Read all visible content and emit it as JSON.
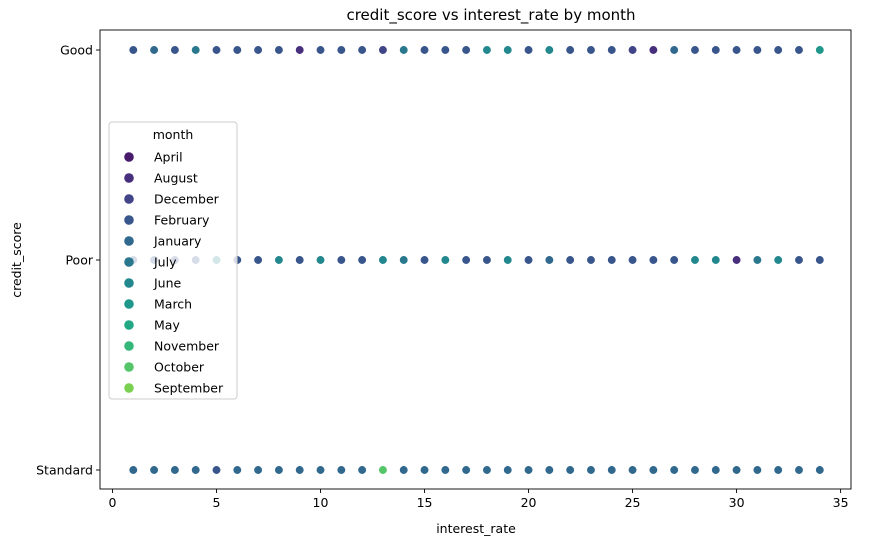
{
  "chart_data": {
    "type": "scatter",
    "title": "credit_score vs interest_rate by month",
    "xlabel": "interest_rate",
    "ylabel": "credit_score",
    "xlim": [
      -0.6,
      35.5
    ],
    "x_ticks": [
      0,
      5,
      10,
      15,
      20,
      25,
      30,
      35
    ],
    "categories_y": [
      "Good",
      "Poor",
      "Standard"
    ],
    "grid": false,
    "legend": {
      "title": "month",
      "placement": "center-left",
      "entries": [
        {
          "name": "April",
          "color": "#481a6c"
        },
        {
          "name": "August",
          "color": "#472f7d"
        },
        {
          "name": "December",
          "color": "#414487"
        },
        {
          "name": "February",
          "color": "#39568c"
        },
        {
          "name": "January",
          "color": "#31688e"
        },
        {
          "name": "July",
          "color": "#2a788e"
        },
        {
          "name": "June",
          "color": "#23888e"
        },
        {
          "name": "March",
          "color": "#1f988b"
        },
        {
          "name": "May",
          "color": "#22a884"
        },
        {
          "name": "November",
          "color": "#35b779"
        },
        {
          "name": "October",
          "color": "#54c568"
        },
        {
          "name": "September",
          "color": "#7ad151"
        }
      ]
    },
    "series": [
      {
        "y": "Good",
        "points": [
          {
            "x": 1,
            "month": "February"
          },
          {
            "x": 2,
            "month": "January"
          },
          {
            "x": 3,
            "month": "February"
          },
          {
            "x": 4,
            "month": "July"
          },
          {
            "x": 5,
            "month": "February"
          },
          {
            "x": 6,
            "month": "February"
          },
          {
            "x": 7,
            "month": "February"
          },
          {
            "x": 8,
            "month": "February"
          },
          {
            "x": 9,
            "month": "August"
          },
          {
            "x": 10,
            "month": "February"
          },
          {
            "x": 11,
            "month": "February"
          },
          {
            "x": 12,
            "month": "February"
          },
          {
            "x": 13,
            "month": "December"
          },
          {
            "x": 14,
            "month": "July"
          },
          {
            "x": 15,
            "month": "February"
          },
          {
            "x": 16,
            "month": "February"
          },
          {
            "x": 17,
            "month": "February"
          },
          {
            "x": 18,
            "month": "June"
          },
          {
            "x": 19,
            "month": "June"
          },
          {
            "x": 20,
            "month": "February"
          },
          {
            "x": 21,
            "month": "June"
          },
          {
            "x": 22,
            "month": "February"
          },
          {
            "x": 23,
            "month": "February"
          },
          {
            "x": 24,
            "month": "February"
          },
          {
            "x": 25,
            "month": "December"
          },
          {
            "x": 26,
            "month": "August"
          },
          {
            "x": 27,
            "month": "January"
          },
          {
            "x": 28,
            "month": "February"
          },
          {
            "x": 29,
            "month": "February"
          },
          {
            "x": 30,
            "month": "February"
          },
          {
            "x": 31,
            "month": "February"
          },
          {
            "x": 32,
            "month": "February"
          },
          {
            "x": 33,
            "month": "February"
          },
          {
            "x": 34,
            "month": "March"
          }
        ]
      },
      {
        "y": "Poor",
        "points": [
          {
            "x": 1,
            "month": "February"
          },
          {
            "x": 2,
            "month": "February"
          },
          {
            "x": 3,
            "month": "February"
          },
          {
            "x": 4,
            "month": "February"
          },
          {
            "x": 5,
            "month": "June"
          },
          {
            "x": 6,
            "month": "February"
          },
          {
            "x": 7,
            "month": "February"
          },
          {
            "x": 8,
            "month": "June"
          },
          {
            "x": 9,
            "month": "February"
          },
          {
            "x": 10,
            "month": "June"
          },
          {
            "x": 11,
            "month": "February"
          },
          {
            "x": 12,
            "month": "February"
          },
          {
            "x": 13,
            "month": "June"
          },
          {
            "x": 14,
            "month": "July"
          },
          {
            "x": 15,
            "month": "February"
          },
          {
            "x": 16,
            "month": "June"
          },
          {
            "x": 17,
            "month": "February"
          },
          {
            "x": 18,
            "month": "February"
          },
          {
            "x": 19,
            "month": "June"
          },
          {
            "x": 20,
            "month": "February"
          },
          {
            "x": 21,
            "month": "January"
          },
          {
            "x": 22,
            "month": "February"
          },
          {
            "x": 23,
            "month": "February"
          },
          {
            "x": 24,
            "month": "February"
          },
          {
            "x": 25,
            "month": "February"
          },
          {
            "x": 26,
            "month": "February"
          },
          {
            "x": 27,
            "month": "February"
          },
          {
            "x": 28,
            "month": "June"
          },
          {
            "x": 29,
            "month": "June"
          },
          {
            "x": 30,
            "month": "August"
          },
          {
            "x": 31,
            "month": "July"
          },
          {
            "x": 32,
            "month": "June"
          },
          {
            "x": 33,
            "month": "February"
          },
          {
            "x": 34,
            "month": "February"
          }
        ]
      },
      {
        "y": "Standard",
        "points": [
          {
            "x": 1,
            "month": "January"
          },
          {
            "x": 2,
            "month": "January"
          },
          {
            "x": 3,
            "month": "January"
          },
          {
            "x": 4,
            "month": "January"
          },
          {
            "x": 5,
            "month": "February"
          },
          {
            "x": 6,
            "month": "January"
          },
          {
            "x": 7,
            "month": "January"
          },
          {
            "x": 8,
            "month": "January"
          },
          {
            "x": 9,
            "month": "January"
          },
          {
            "x": 10,
            "month": "January"
          },
          {
            "x": 11,
            "month": "January"
          },
          {
            "x": 12,
            "month": "January"
          },
          {
            "x": 13,
            "month": "October"
          },
          {
            "x": 14,
            "month": "January"
          },
          {
            "x": 15,
            "month": "January"
          },
          {
            "x": 16,
            "month": "January"
          },
          {
            "x": 17,
            "month": "January"
          },
          {
            "x": 18,
            "month": "January"
          },
          {
            "x": 19,
            "month": "January"
          },
          {
            "x": 20,
            "month": "January"
          },
          {
            "x": 21,
            "month": "January"
          },
          {
            "x": 22,
            "month": "January"
          },
          {
            "x": 23,
            "month": "January"
          },
          {
            "x": 24,
            "month": "January"
          },
          {
            "x": 25,
            "month": "January"
          },
          {
            "x": 26,
            "month": "January"
          },
          {
            "x": 27,
            "month": "January"
          },
          {
            "x": 28,
            "month": "January"
          },
          {
            "x": 29,
            "month": "January"
          },
          {
            "x": 30,
            "month": "January"
          },
          {
            "x": 31,
            "month": "January"
          },
          {
            "x": 32,
            "month": "January"
          },
          {
            "x": 33,
            "month": "January"
          },
          {
            "x": 34,
            "month": "January"
          }
        ]
      }
    ]
  }
}
